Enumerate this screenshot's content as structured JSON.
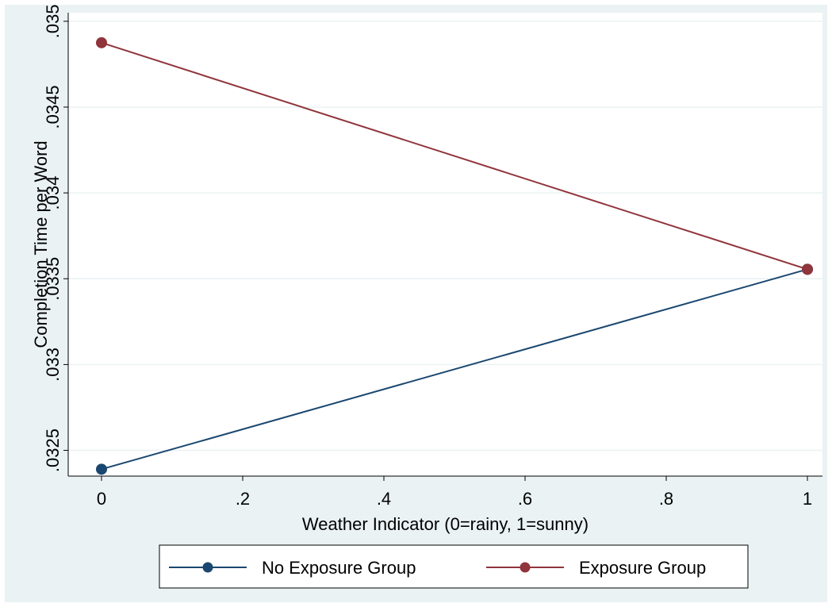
{
  "chart_data": {
    "type": "line",
    "title": "",
    "xlabel": "Weather Indicator (0=rainy, 1=sunny)",
    "ylabel": "Completion Time per Word",
    "xlim": [
      0,
      1
    ],
    "ylim": [
      0.03235,
      0.03505
    ],
    "x_ticks": [
      0,
      0.2,
      0.4,
      0.6,
      0.8,
      1
    ],
    "x_tick_labels": [
      "0",
      ".2",
      ".4",
      ".6",
      ".8",
      "1"
    ],
    "y_ticks": [
      0.0325,
      0.033,
      0.0335,
      0.034,
      0.0345,
      0.035
    ],
    "y_tick_labels": [
      ".0325",
      ".033",
      ".0335",
      ".034",
      ".0345",
      ".035"
    ],
    "grid": true,
    "legend_position": "bottom",
    "x": [
      0,
      1
    ],
    "series": [
      {
        "name": "No Exposure Group",
        "values": [
          0.03239,
          0.033555
        ],
        "color": "#1a476f"
      },
      {
        "name": "Exposure Group",
        "values": [
          0.034875,
          0.033555
        ],
        "color": "#90353b"
      }
    ]
  },
  "colors": {
    "outer_background": "#eaf2f3",
    "plot_background": "#ffffff",
    "grid": "#eaf2f3"
  }
}
